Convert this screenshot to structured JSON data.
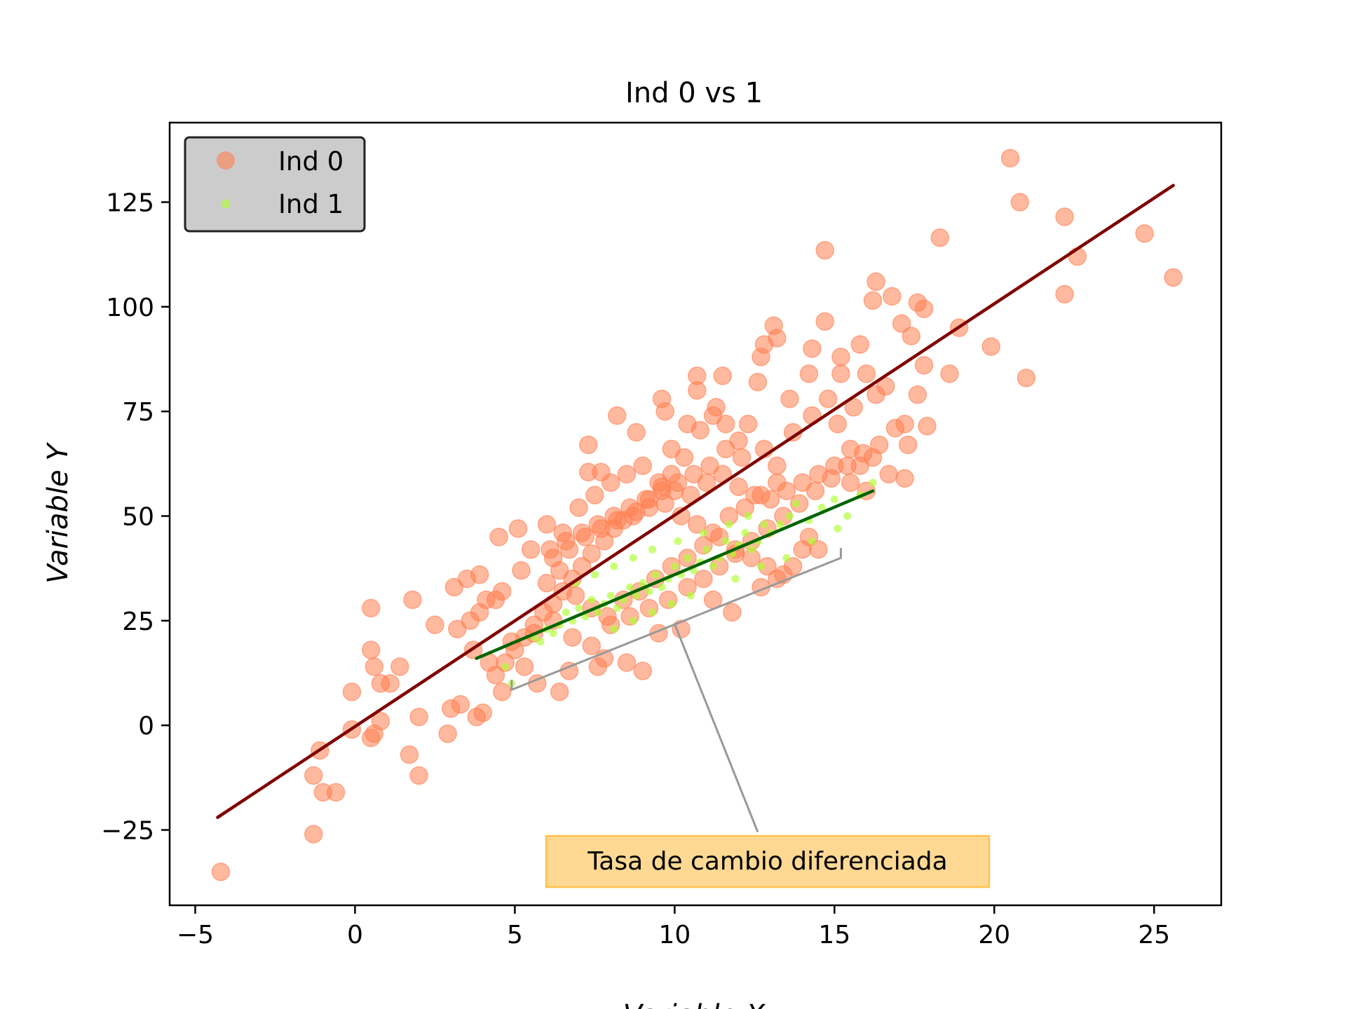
{
  "chart_data": {
    "type": "scatter",
    "title": "Ind 0 vs 1",
    "xlabel": "Variable X",
    "ylabel": "Variable Y",
    "xlim": [
      -5.8,
      27.1
    ],
    "ylim": [
      -43,
      144
    ],
    "x_ticks": [
      -5,
      0,
      5,
      10,
      15,
      20,
      25
    ],
    "x_tick_labels": [
      "−5",
      "0",
      "5",
      "10",
      "15",
      "20",
      "25"
    ],
    "y_ticks": [
      -25,
      0,
      25,
      50,
      75,
      100,
      125
    ],
    "y_tick_labels": [
      "−25",
      "0",
      "25",
      "50",
      "75",
      "100",
      "125"
    ],
    "grid": false,
    "legend_position": "top-left",
    "series": [
      {
        "name": "Ind 0",
        "color": "#ff7f50",
        "marker": "circle",
        "points": [
          [
            20.5,
            135.5
          ],
          [
            20.8,
            125
          ],
          [
            22.2,
            121.5
          ],
          [
            22.6,
            112
          ],
          [
            24.7,
            117.5
          ],
          [
            25.6,
            107
          ],
          [
            18.3,
            116.5
          ],
          [
            14.7,
            113.5
          ],
          [
            22.2,
            103
          ],
          [
            21.0,
            83
          ],
          [
            19.9,
            90.5
          ],
          [
            18.9,
            95
          ],
          [
            18.6,
            84
          ],
          [
            17.8,
            86
          ],
          [
            17.9,
            71.5
          ],
          [
            17.6,
            79
          ],
          [
            16.3,
            106
          ],
          [
            16.8,
            102.5
          ],
          [
            17.6,
            101
          ],
          [
            17.8,
            99.5
          ],
          [
            16.2,
            101.5
          ],
          [
            17.1,
            96
          ],
          [
            17.4,
            93
          ],
          [
            17.2,
            72
          ],
          [
            17.3,
            67
          ],
          [
            17.2,
            59
          ],
          [
            15.8,
            91
          ],
          [
            15.2,
            88
          ],
          [
            14.7,
            96.5
          ],
          [
            14.3,
            90
          ],
          [
            13.2,
            92.5
          ],
          [
            13.1,
            95.5
          ],
          [
            12.8,
            91
          ],
          [
            12.7,
            88
          ],
          [
            11.5,
            83.5
          ],
          [
            10.7,
            83.5
          ],
          [
            10.7,
            80
          ],
          [
            9.6,
            78
          ],
          [
            9.7,
            75
          ],
          [
            8.2,
            74
          ],
          [
            7.3,
            67
          ],
          [
            7.3,
            60.5
          ],
          [
            7.7,
            60.5
          ],
          [
            8.8,
            70
          ],
          [
            9.9,
            66
          ],
          [
            10.3,
            64
          ],
          [
            10.8,
            70.5
          ],
          [
            11.3,
            76
          ],
          [
            11.6,
            72
          ],
          [
            12.0,
            68
          ],
          [
            12.3,
            72
          ],
          [
            12.8,
            66
          ],
          [
            13.2,
            62
          ],
          [
            13.7,
            70
          ],
          [
            14.3,
            74
          ],
          [
            14.8,
            78
          ],
          [
            15.1,
            72
          ],
          [
            15.5,
            66
          ],
          [
            15.8,
            62
          ],
          [
            16.2,
            64
          ],
          [
            16.7,
            60
          ],
          [
            16.3,
            79
          ],
          [
            16.6,
            81
          ],
          [
            16.0,
            84
          ],
          [
            16.9,
            71
          ],
          [
            15.2,
            84
          ],
          [
            15.6,
            76
          ],
          [
            14.2,
            84
          ],
          [
            13.6,
            78
          ],
          [
            12.6,
            82
          ],
          [
            11.2,
            74
          ],
          [
            10.4,
            72
          ],
          [
            9.9,
            60
          ],
          [
            9.6,
            57
          ],
          [
            9.2,
            54
          ],
          [
            8.8,
            51
          ],
          [
            8.4,
            49
          ],
          [
            8.1,
            47
          ],
          [
            7.8,
            44
          ],
          [
            7.4,
            41
          ],
          [
            7.1,
            38
          ],
          [
            6.8,
            35
          ],
          [
            6.5,
            32
          ],
          [
            6.2,
            29
          ],
          [
            5.9,
            27
          ],
          [
            5.6,
            24
          ],
          [
            5.3,
            21
          ],
          [
            5.0,
            18
          ],
          [
            4.7,
            15
          ],
          [
            4.4,
            12
          ],
          [
            6.0,
            48
          ],
          [
            6.5,
            46
          ],
          [
            7.0,
            52
          ],
          [
            7.5,
            55
          ],
          [
            8.0,
            58
          ],
          [
            8.5,
            60
          ],
          [
            9.0,
            62
          ],
          [
            9.5,
            58
          ],
          [
            10.0,
            56
          ],
          [
            10.5,
            55
          ],
          [
            11.0,
            58
          ],
          [
            11.5,
            60
          ],
          [
            12.0,
            57
          ],
          [
            12.5,
            55
          ],
          [
            13.0,
            54
          ],
          [
            13.5,
            56
          ],
          [
            14.0,
            58
          ],
          [
            14.5,
            60
          ],
          [
            15.0,
            62
          ],
          [
            15.5,
            58
          ],
          [
            16.0,
            56
          ],
          [
            6.2,
            40
          ],
          [
            6.7,
            42
          ],
          [
            7.2,
            45
          ],
          [
            7.7,
            47
          ],
          [
            8.2,
            49
          ],
          [
            8.7,
            50
          ],
          [
            9.2,
            52
          ],
          [
            9.7,
            53
          ],
          [
            10.2,
            50
          ],
          [
            10.7,
            48
          ],
          [
            11.2,
            46
          ],
          [
            11.7,
            50
          ],
          [
            12.2,
            52
          ],
          [
            12.7,
            55
          ],
          [
            13.2,
            58
          ],
          [
            6.0,
            34
          ],
          [
            6.4,
            37
          ],
          [
            6.9,
            31
          ],
          [
            7.4,
            28
          ],
          [
            7.9,
            26
          ],
          [
            8.4,
            30
          ],
          [
            8.9,
            32
          ],
          [
            9.4,
            35
          ],
          [
            9.9,
            38
          ],
          [
            10.4,
            40
          ],
          [
            10.9,
            43
          ],
          [
            11.4,
            45
          ],
          [
            11.9,
            42
          ],
          [
            12.4,
            40
          ],
          [
            12.9,
            38
          ],
          [
            13.4,
            36
          ],
          [
            14.0,
            42
          ],
          [
            5.2,
            37
          ],
          [
            5.5,
            42
          ],
          [
            5.1,
            47
          ],
          [
            4.6,
            32
          ],
          [
            4.4,
            30
          ],
          [
            3.9,
            27
          ],
          [
            3.6,
            25
          ],
          [
            3.2,
            23
          ],
          [
            2.5,
            24
          ],
          [
            3.9,
            36
          ],
          [
            3.5,
            35
          ],
          [
            3.1,
            33
          ],
          [
            4.5,
            45
          ],
          [
            4.1,
            30
          ],
          [
            3.7,
            18
          ],
          [
            4.2,
            15
          ],
          [
            4.6,
            8
          ],
          [
            4.0,
            3
          ],
          [
            3.8,
            2
          ],
          [
            3.0,
            4
          ],
          [
            3.3,
            5
          ],
          [
            2.9,
            -2
          ],
          [
            2.0,
            2
          ],
          [
            1.8,
            30
          ],
          [
            1.4,
            14
          ],
          [
            1.1,
            10
          ],
          [
            0.5,
            28
          ],
          [
            0.5,
            18
          ],
          [
            0.6,
            14
          ],
          [
            0.8,
            10
          ],
          [
            -0.1,
            8
          ],
          [
            0.8,
            1
          ],
          [
            0.6,
            -2
          ],
          [
            0.5,
            -3
          ],
          [
            -0.1,
            -1
          ],
          [
            1.7,
            -7
          ],
          [
            2.0,
            -12
          ],
          [
            -1.1,
            -6
          ],
          [
            -1.3,
            -12
          ],
          [
            -1.0,
            -16
          ],
          [
            -0.6,
            -16
          ],
          [
            -1.3,
            -26
          ],
          [
            -4.2,
            -35
          ],
          [
            9.0,
            13
          ],
          [
            7.8,
            16
          ],
          [
            7.6,
            14
          ],
          [
            8.5,
            15
          ],
          [
            9.5,
            22
          ],
          [
            10.2,
            23
          ],
          [
            11.2,
            30
          ],
          [
            11.8,
            27
          ],
          [
            12.7,
            33
          ],
          [
            13.2,
            35
          ],
          [
            13.7,
            38
          ],
          [
            14.2,
            45
          ],
          [
            14.5,
            42
          ],
          [
            5.7,
            10
          ],
          [
            6.4,
            8
          ],
          [
            6.7,
            13
          ],
          [
            5.3,
            14
          ],
          [
            4.9,
            20
          ],
          [
            5.6,
            22
          ],
          [
            6.2,
            25
          ],
          [
            6.8,
            21
          ],
          [
            7.4,
            19
          ],
          [
            8.0,
            24
          ],
          [
            8.6,
            26
          ],
          [
            9.2,
            28
          ],
          [
            9.8,
            30
          ],
          [
            10.4,
            33
          ],
          [
            10.9,
            35
          ],
          [
            11.4,
            38
          ],
          [
            11.9,
            41
          ],
          [
            12.4,
            44
          ],
          [
            12.9,
            47
          ],
          [
            13.4,
            50
          ],
          [
            13.9,
            53
          ],
          [
            14.4,
            56
          ],
          [
            14.9,
            59
          ],
          [
            15.4,
            62
          ],
          [
            15.9,
            65
          ],
          [
            16.4,
            67
          ],
          [
            12.1,
            64
          ],
          [
            11.6,
            66
          ],
          [
            11.1,
            62
          ],
          [
            10.6,
            60
          ],
          [
            10.1,
            58
          ],
          [
            9.6,
            56
          ],
          [
            9.1,
            54
          ],
          [
            8.6,
            52
          ],
          [
            8.1,
            50
          ],
          [
            7.6,
            48
          ],
          [
            7.1,
            46
          ],
          [
            6.6,
            44
          ],
          [
            6.1,
            42
          ]
        ]
      },
      {
        "name": "Ind 1",
        "color": "#adff2f",
        "marker": "circle",
        "points": [
          [
            16.2,
            58
          ],
          [
            15.8,
            55
          ],
          [
            15.4,
            50
          ],
          [
            15.0,
            54
          ],
          [
            14.6,
            52
          ],
          [
            14.2,
            49
          ],
          [
            13.8,
            53
          ],
          [
            13.6,
            50
          ],
          [
            13.3,
            48
          ],
          [
            13.0,
            46
          ],
          [
            12.8,
            48
          ],
          [
            12.6,
            44
          ],
          [
            12.4,
            42
          ],
          [
            12.2,
            46
          ],
          [
            12.0,
            43
          ],
          [
            11.8,
            41
          ],
          [
            11.6,
            44
          ],
          [
            11.4,
            40
          ],
          [
            11.2,
            38
          ],
          [
            11.0,
            42
          ],
          [
            10.8,
            39
          ],
          [
            10.6,
            37
          ],
          [
            10.4,
            40
          ],
          [
            10.2,
            36
          ],
          [
            10.0,
            38
          ],
          [
            9.8,
            35
          ],
          [
            9.6,
            33
          ],
          [
            9.4,
            36
          ],
          [
            9.2,
            32
          ],
          [
            9.0,
            34
          ],
          [
            8.8,
            31
          ],
          [
            8.6,
            33
          ],
          [
            8.4,
            30
          ],
          [
            8.2,
            28
          ],
          [
            8.0,
            31
          ],
          [
            7.8,
            29
          ],
          [
            7.6,
            27
          ],
          [
            7.4,
            30
          ],
          [
            7.2,
            26
          ],
          [
            7.0,
            28
          ],
          [
            6.8,
            25
          ],
          [
            6.6,
            27
          ],
          [
            6.4,
            24
          ],
          [
            6.2,
            22
          ],
          [
            6.0,
            23
          ],
          [
            5.8,
            20
          ],
          [
            5.6,
            21
          ],
          [
            4.9,
            10
          ],
          [
            4.7,
            14
          ],
          [
            12.3,
            50
          ],
          [
            11.7,
            48
          ],
          [
            10.9,
            46
          ],
          [
            10.1,
            44
          ],
          [
            9.3,
            42
          ],
          [
            8.7,
            40
          ],
          [
            8.1,
            38
          ],
          [
            7.5,
            36
          ],
          [
            6.9,
            34
          ],
          [
            10.5,
            31
          ],
          [
            9.9,
            29
          ],
          [
            9.3,
            27
          ],
          [
            8.7,
            25
          ],
          [
            8.1,
            23
          ],
          [
            11.9,
            35
          ],
          [
            12.7,
            38
          ],
          [
            13.5,
            40
          ],
          [
            14.3,
            44
          ],
          [
            15.1,
            47
          ]
        ]
      }
    ],
    "fit_lines": [
      {
        "color": "#800000",
        "x": [
          -4.3,
          25.6
        ],
        "y": [
          -22,
          129
        ]
      },
      {
        "color": "#006400",
        "x": [
          3.8,
          16.2
        ],
        "y": [
          16,
          56
        ]
      }
    ],
    "annotation": {
      "text": "Tasa de cambio diferenciada",
      "box_color": "#ffd993",
      "box_edge_color": "#ffc24d",
      "bracket": [
        [
          4.9,
          8.5
        ],
        [
          15.2,
          40
        ]
      ],
      "bracket_mid": [
        10.0,
        24.2
      ],
      "arrow_tip": [
        12.6,
        -25.5
      ]
    }
  }
}
